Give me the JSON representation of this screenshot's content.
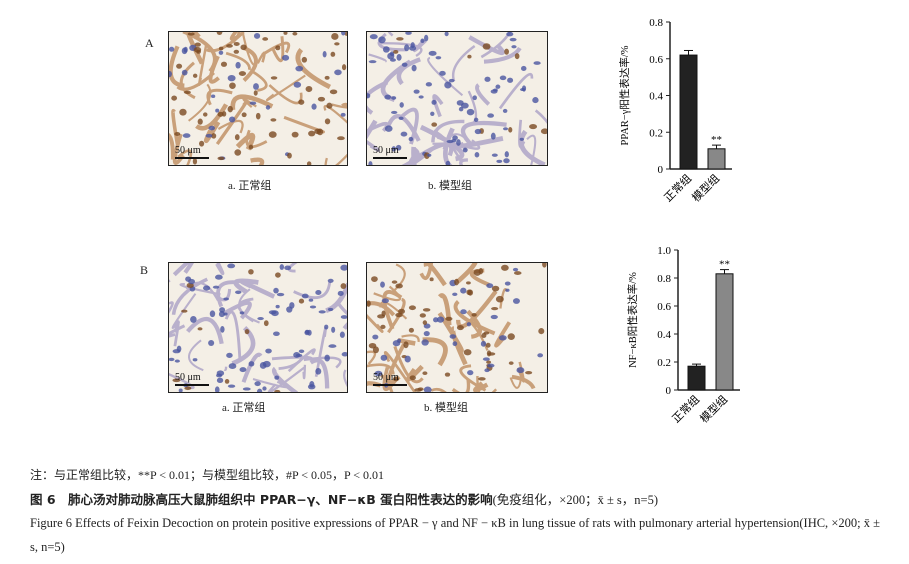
{
  "panels": [
    {
      "label": "A",
      "images": [
        {
          "caption": "a. 正常组",
          "scale": "50 μm",
          "stain": "brown-dominant"
        },
        {
          "caption": "b. 模型组",
          "scale": "50 μm",
          "stain": "blue-dominant"
        }
      ]
    },
    {
      "label": "B",
      "images": [
        {
          "caption": "a. 正常组",
          "scale": "50 μm",
          "stain": "blue-dominant"
        },
        {
          "caption": "b. 模型组",
          "scale": "50 μm",
          "stain": "brown-dominant"
        }
      ]
    }
  ],
  "chart_data": [
    {
      "type": "bar",
      "ylabel": "PPAR−γ阳性表达率/%",
      "categories": [
        "正常组",
        "模型组"
      ],
      "values": [
        0.62,
        0.11
      ],
      "errors": [
        0.025,
        0.02
      ],
      "annotations": [
        "",
        "**"
      ],
      "ylim": [
        0,
        0.8
      ],
      "yticks": [
        "0",
        "0.2",
        "0.4",
        "0.6",
        "0.8"
      ],
      "colors": [
        "#222222",
        "#888888"
      ]
    },
    {
      "type": "bar",
      "ylabel": "NF−κB阳性表达率/%",
      "categories": [
        "正常组",
        "模型组"
      ],
      "values": [
        0.17,
        0.83
      ],
      "errors": [
        0.015,
        0.03
      ],
      "annotations": [
        "",
        "**"
      ],
      "ylim": [
        0,
        1.0
      ],
      "yticks": [
        "0",
        "0.2",
        "0.4",
        "0.6",
        "0.8",
        "1.0"
      ],
      "colors": [
        "#222222",
        "#888888"
      ]
    }
  ],
  "caption": {
    "note": "注：与正常组比较，**P < 0.01；与模型组比较，#P < 0.05，P < 0.01",
    "title_cn": "图 6　肺心汤对肺动脉高压大鼠肺组织中 PPAR−γ、NF−κB 蛋白阳性表达的影响",
    "title_cn_tail": "(免疫组化，×200；x̄ ± s，n=5)",
    "title_en": "Figure 6  Effects of Feixin Decoction on protein positive expressions of PPAR − γ and NF − κB in lung tissue of rats with pulmonary arterial hypertension(IHC, ×200; x̄ ± s, n=5)"
  }
}
